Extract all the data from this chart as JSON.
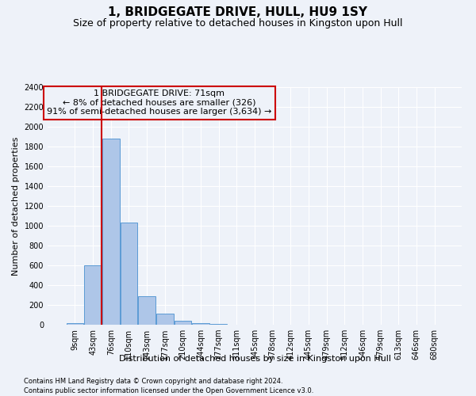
{
  "title": "1, BRIDGEGATE DRIVE, HULL, HU9 1SY",
  "subtitle": "Size of property relative to detached houses in Kingston upon Hull",
  "xlabel": "Distribution of detached houses by size in Kingston upon Hull",
  "ylabel": "Number of detached properties",
  "footnote1": "Contains HM Land Registry data © Crown copyright and database right 2024.",
  "footnote2": "Contains public sector information licensed under the Open Government Licence v3.0.",
  "bar_labels": [
    "9sqm",
    "43sqm",
    "76sqm",
    "110sqm",
    "143sqm",
    "177sqm",
    "210sqm",
    "244sqm",
    "277sqm",
    "311sqm",
    "345sqm",
    "378sqm",
    "412sqm",
    "445sqm",
    "479sqm",
    "512sqm",
    "546sqm",
    "579sqm",
    "613sqm",
    "646sqm",
    "680sqm"
  ],
  "bar_values": [
    15,
    600,
    1880,
    1030,
    290,
    115,
    38,
    20,
    12,
    0,
    0,
    0,
    0,
    0,
    0,
    0,
    0,
    0,
    0,
    0,
    0
  ],
  "bar_color": "#aec6e8",
  "bar_edge_color": "#5b9bd5",
  "highlight_color": "#cc0000",
  "vline_x_index": 2,
  "annotation_line1": "1 BRIDGEGATE DRIVE: 71sqm",
  "annotation_line2": "← 8% of detached houses are smaller (326)",
  "annotation_line3": "91% of semi-detached houses are larger (3,634) →",
  "annotation_box_color": "#cc0000",
  "ylim": [
    0,
    2400
  ],
  "yticks": [
    0,
    200,
    400,
    600,
    800,
    1000,
    1200,
    1400,
    1600,
    1800,
    2000,
    2200,
    2400
  ],
  "bg_color": "#eef2f9",
  "grid_color": "#ffffff",
  "title_fontsize": 11,
  "subtitle_fontsize": 9,
  "axis_label_fontsize": 8,
  "tick_fontsize": 7,
  "annotation_fontsize": 8,
  "footnote_fontsize": 6
}
